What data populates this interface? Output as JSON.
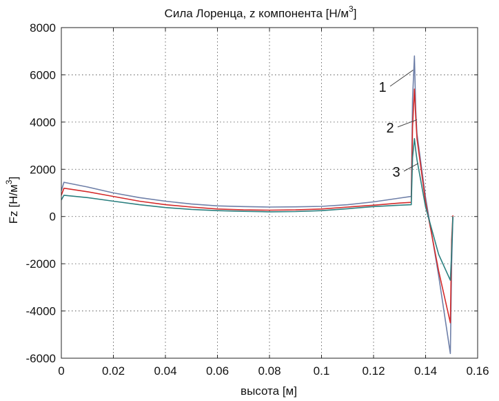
{
  "chart_data": {
    "type": "line",
    "title": "Сила Лоренца, z компонента [Н/м",
    "title_superscript": "3",
    "title_close": "]",
    "xlabel": "высота [м]",
    "ylabel": "Fz [Н/м",
    "ylabel_superscript": "3",
    "ylabel_close": "]",
    "xlim": [
      0,
      0.16
    ],
    "ylim": [
      -6000,
      8000
    ],
    "xticks": [
      0,
      0.02,
      0.04,
      0.06,
      0.08,
      0.1,
      0.12,
      0.14,
      0.16
    ],
    "xtick_labels": [
      "0",
      "0.02",
      "0.04",
      "0.06",
      "0.08",
      "0.1",
      "0.12",
      "0.14",
      "0.16"
    ],
    "yticks": [
      -6000,
      -4000,
      -2000,
      0,
      2000,
      4000,
      6000,
      8000
    ],
    "ytick_labels": [
      "-6000",
      "-4000",
      "-2000",
      "0",
      "2000",
      "4000",
      "6000",
      "8000"
    ],
    "grid": true,
    "grid_style": "dotted",
    "series": [
      {
        "name": "1",
        "color": "#6e7fa8",
        "x": [
          0,
          0.001,
          0.01,
          0.02,
          0.03,
          0.04,
          0.05,
          0.06,
          0.07,
          0.08,
          0.09,
          0.1,
          0.11,
          0.12,
          0.13,
          0.1345,
          0.135,
          0.1357,
          0.1362,
          0.1367,
          0.14,
          0.145,
          0.1495,
          0.15,
          0.1505
        ],
        "y": [
          1100,
          1450,
          1250,
          1000,
          800,
          650,
          530,
          450,
          420,
          400,
          410,
          430,
          500,
          620,
          780,
          850,
          5000,
          6800,
          4500,
          3500,
          800,
          -2500,
          -5800,
          -2000,
          0
        ]
      },
      {
        "name": "2",
        "color": "#d42a2a",
        "x": [
          0,
          0.001,
          0.01,
          0.02,
          0.03,
          0.04,
          0.05,
          0.06,
          0.07,
          0.08,
          0.09,
          0.1,
          0.11,
          0.12,
          0.13,
          0.1345,
          0.135,
          0.1357,
          0.1362,
          0.1367,
          0.14,
          0.145,
          0.1495,
          0.15,
          0.1505
        ],
        "y": [
          900,
          1200,
          1050,
          850,
          650,
          500,
          400,
          320,
          280,
          270,
          280,
          320,
          400,
          480,
          570,
          600,
          3800,
          5400,
          4200,
          3300,
          600,
          -2300,
          -4500,
          -1000,
          50
        ]
      },
      {
        "name": "3",
        "color": "#2a7f7f",
        "x": [
          0,
          0.001,
          0.01,
          0.02,
          0.03,
          0.04,
          0.05,
          0.06,
          0.07,
          0.08,
          0.09,
          0.1,
          0.11,
          0.12,
          0.13,
          0.1345,
          0.135,
          0.1357,
          0.1362,
          0.1367,
          0.14,
          0.145,
          0.1495,
          0.15,
          0.1505
        ],
        "y": [
          700,
          900,
          800,
          650,
          500,
          380,
          300,
          250,
          220,
          200,
          210,
          250,
          330,
          420,
          480,
          500,
          2500,
          3300,
          2800,
          2400,
          400,
          -1600,
          -2700,
          -1500,
          0
        ]
      }
    ],
    "callouts": [
      {
        "label": "1",
        "at": [
          0.1352,
          6200
        ]
      },
      {
        "label": "2",
        "at": [
          0.1367,
          4100
        ]
      },
      {
        "label": "3",
        "at": [
          0.1372,
          2250
        ]
      }
    ]
  }
}
